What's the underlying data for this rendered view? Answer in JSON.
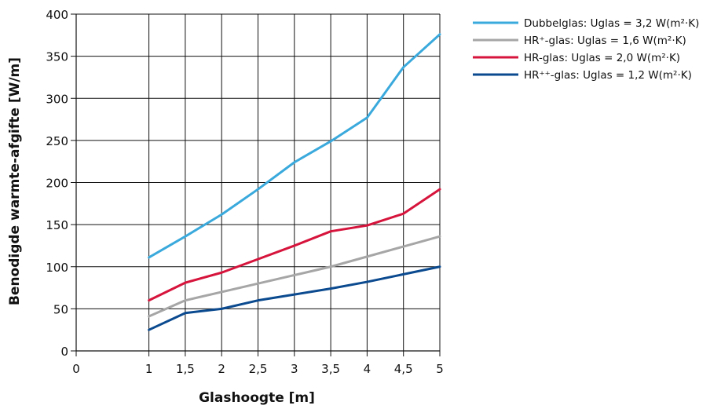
{
  "chart_data": {
    "type": "line",
    "title": "",
    "xlabel": "Glashoogte [m]",
    "ylabel": "Benodigde warmte-afgifte [W/m]",
    "xlim": [
      0,
      5
    ],
    "ylim": [
      0,
      400
    ],
    "x_ticks": [
      0,
      1,
      1.5,
      2,
      2.5,
      3,
      3.5,
      4,
      4.5,
      5
    ],
    "x_tick_labels": [
      "0",
      "1",
      "1,5",
      "2",
      "2,5",
      "3",
      "3,5",
      "4",
      "4,5",
      "5"
    ],
    "y_ticks": [
      0,
      50,
      100,
      150,
      200,
      250,
      300,
      350,
      400
    ],
    "y_tick_labels": [
      "0",
      "50",
      "100",
      "150",
      "200",
      "250",
      "300",
      "350",
      "400"
    ],
    "grid": true,
    "legend_position": "right",
    "x": [
      1,
      1.5,
      2,
      2.5,
      3,
      3.5,
      4,
      4.5,
      5
    ],
    "series": [
      {
        "name": "Dubbelglas: Uglas = 3,2 W(m²·K)",
        "color": "#3aa9dc",
        "values": [
          111,
          136,
          162,
          192,
          224,
          249,
          277,
          337,
          376
        ]
      },
      {
        "name": "HR⁺-glas: Uglas = 1,6 W(m²·K)",
        "color": "#a6a6a6",
        "values": [
          41,
          60,
          70,
          80,
          90,
          100,
          112,
          124,
          136
        ]
      },
      {
        "name": "HR-glas: Uglas = 2,0 W(m²·K)",
        "color": "#d6143c",
        "values": [
          60,
          81,
          93,
          109,
          125,
          142,
          149,
          163,
          192
        ]
      },
      {
        "name": "HR⁺⁺-glas: Uglas = 1,2 W(m²·K)",
        "color": "#0b4a8f",
        "values": [
          25,
          45,
          50,
          60,
          67,
          74,
          82,
          91,
          100
        ]
      }
    ]
  }
}
